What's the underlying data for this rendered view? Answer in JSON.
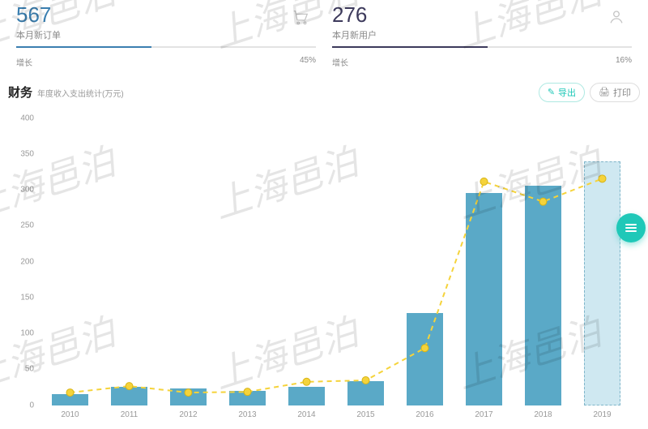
{
  "kpi": [
    {
      "value": "567",
      "label": "本月新订单",
      "icon": "cart",
      "value_color": "#3b7fb0",
      "bar_fill_color": "#3b7fb0",
      "bar_track_color": "#e3e3e3",
      "growth_label": "增长",
      "growth_value": "45%",
      "progress_pct": 45
    },
    {
      "value": "276",
      "label": "本月新用户",
      "icon": "user",
      "value_color": "#3d3a5c",
      "bar_fill_color": "#3d3a5c",
      "bar_track_color": "#e3e3e3",
      "growth_label": "增长",
      "growth_value": "16%",
      "progress_pct": 52
    }
  ],
  "chart": {
    "title": "财务",
    "subtitle": "年度收入支出统计(万元)",
    "actions": {
      "export": {
        "icon": "✎",
        "label": "导出"
      },
      "print": {
        "icon": "🖨",
        "label": "打印"
      }
    },
    "type": "bar+line",
    "categories": [
      "2010",
      "2011",
      "2012",
      "2013",
      "2014",
      "2015",
      "2016",
      "2017",
      "2018",
      "2019"
    ],
    "bar_values": [
      15,
      26,
      23,
      20,
      26,
      34,
      128,
      296,
      306,
      340
    ],
    "line_values": [
      18,
      27,
      18,
      19,
      33,
      35,
      80,
      312,
      284,
      316
    ],
    "ylim": [
      0,
      400
    ],
    "ytick_step": 50,
    "bar_color": "#5aa9c7",
    "bar_last_color": "#cfe8f1",
    "bar_last_border": "#7fb5c9",
    "line_color": "#f5d33b",
    "line_dash": "6 5",
    "marker_fill": "#f5d33b",
    "marker_stroke": "#d8b414",
    "marker_radius": 4.5,
    "grid_color": "#ffffff",
    "axis_text_color": "#999999",
    "bar_width_ratio": 0.63,
    "background_color": "#ffffff",
    "title_fontsize": 15,
    "subtitle_fontsize": 10
  },
  "watermark": {
    "text": "上海邑泊"
  },
  "fab": {
    "icon": "menu"
  }
}
